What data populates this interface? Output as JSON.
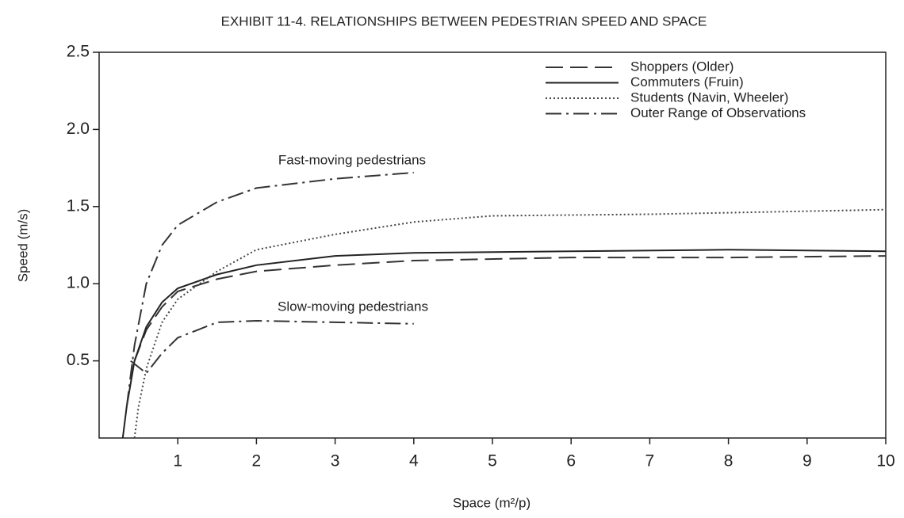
{
  "chart_data": {
    "type": "line",
    "title": "EXHIBIT 11-4.  RELATIONSHIPS BETWEEN PEDESTRIAN SPEED AND SPACE",
    "xlabel": "Space (m²/p)",
    "ylabel": "Speed (m/s)",
    "xlim": [
      0,
      10
    ],
    "ylim": [
      0,
      2.5
    ],
    "xticks": [
      1,
      2,
      3,
      4,
      5,
      6,
      7,
      8,
      9,
      10
    ],
    "yticks": [
      0.5,
      {
        "value": 1,
        "label": "1.0"
      },
      1.5,
      {
        "value": 2,
        "label": "2.0"
      },
      2.5
    ],
    "legend": "top-right",
    "annotations": [
      "Fast-moving pedestrians",
      "Slow-moving pedestrians"
    ],
    "series": [
      {
        "name": "Shoppers (Older)",
        "color": "#333333",
        "dash": "dashed",
        "x": [
          0.45,
          0.6,
          0.8,
          1.0,
          1.5,
          2,
          3,
          4,
          6,
          8,
          10
        ],
        "values": [
          0.5,
          0.7,
          0.85,
          0.95,
          1.03,
          1.08,
          1.12,
          1.15,
          1.17,
          1.17,
          1.18
        ]
      },
      {
        "name": "Commuters (Fruin)",
        "color": "#222222",
        "dash": "solid",
        "x": [
          0.3,
          0.35,
          0.45,
          0.6,
          0.8,
          1.0,
          1.5,
          2,
          3,
          4,
          6,
          8,
          10
        ],
        "values": [
          0,
          0.2,
          0.5,
          0.72,
          0.88,
          0.97,
          1.06,
          1.12,
          1.18,
          1.2,
          1.21,
          1.22,
          1.21
        ]
      },
      {
        "name": "Students (Navin, Wheeler)",
        "color": "#444444",
        "dash": "dotted",
        "x": [
          0.45,
          0.5,
          0.6,
          0.8,
          1.0,
          1.5,
          2,
          3,
          4,
          5,
          7,
          10
        ],
        "values": [
          0,
          0.2,
          0.45,
          0.75,
          0.9,
          1.08,
          1.22,
          1.32,
          1.4,
          1.44,
          1.45,
          1.48
        ]
      },
      {
        "name": "Outer Range of Observations",
        "color": "#333333",
        "dash": "dashdot",
        "x": [
          0.35,
          0.45,
          0.6,
          0.8,
          1.0,
          1.5,
          2,
          3,
          4,
          null,
          0.4,
          0.6,
          0.8,
          1.0,
          1.5,
          2,
          3,
          4
        ],
        "values": [
          0.2,
          0.6,
          1.0,
          1.25,
          1.38,
          1.53,
          1.62,
          1.68,
          1.72,
          null,
          0.5,
          0.42,
          0.55,
          0.65,
          0.75,
          0.76,
          0.75,
          0.74
        ]
      }
    ]
  }
}
